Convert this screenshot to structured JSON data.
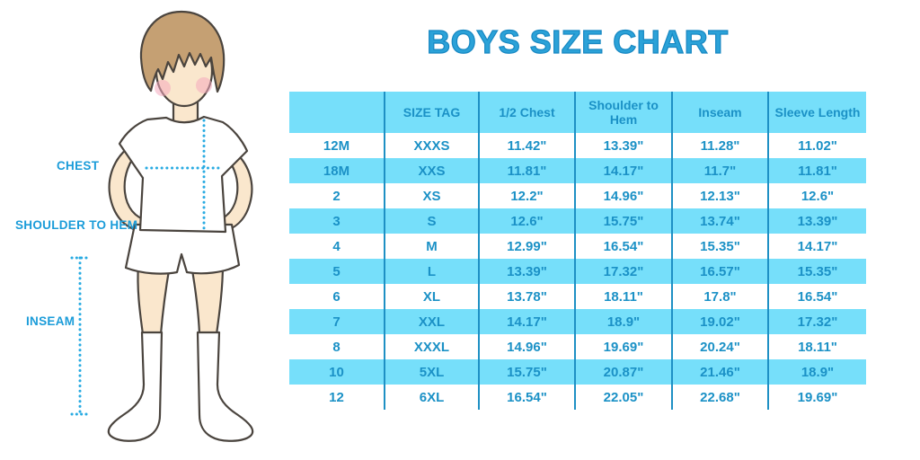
{
  "title": "BOYS SIZE CHART",
  "colors": {
    "title_blue": "#2BA2D8",
    "table_fill_blue": "#76DFFA",
    "table_text_blue": "#1B91C6",
    "separator_blue": "#1E90C4",
    "label_blue": "#1B9CD9",
    "dotted_line_blue": "#29ABE2",
    "hair_brown": "#C5A073",
    "skin": "#FAE7CD",
    "cheek_pink": "#F4A9BE"
  },
  "figure": {
    "chest_label": "CHEST",
    "shoulder_to_hem_label": "SHOULDER TO HEM",
    "inseam_label": "INSEAM"
  },
  "chart_data": {
    "type": "table",
    "title": "BOYS SIZE CHART",
    "columns": [
      "",
      "SIZE TAG",
      "1/2 Chest",
      "Shoulder to Hem",
      "Inseam",
      "Sleeve Length"
    ],
    "rows": [
      [
        "12M",
        "XXXS",
        "11.42\"",
        "13.39\"",
        "11.28\"",
        "11.02\""
      ],
      [
        "18M",
        "XXS",
        "11.81\"",
        "14.17\"",
        "11.7\"",
        "11.81\""
      ],
      [
        "2",
        "XS",
        "12.2\"",
        "14.96\"",
        "12.13\"",
        "12.6\""
      ],
      [
        "3",
        "S",
        "12.6\"",
        "15.75\"",
        "13.74\"",
        "13.39\""
      ],
      [
        "4",
        "M",
        "12.99\"",
        "16.54\"",
        "15.35\"",
        "14.17\""
      ],
      [
        "5",
        "L",
        "13.39\"",
        "17.32\"",
        "16.57\"",
        "15.35\""
      ],
      [
        "6",
        "XL",
        "13.78\"",
        "18.11\"",
        "17.8\"",
        "16.54\""
      ],
      [
        "7",
        "XXL",
        "14.17\"",
        "18.9\"",
        "19.02\"",
        "17.32\""
      ],
      [
        "8",
        "XXXL",
        "14.96\"",
        "19.69\"",
        "20.24\"",
        "18.11\""
      ],
      [
        "10",
        "5XL",
        "15.75\"",
        "20.87\"",
        "21.46\"",
        "18.9\""
      ],
      [
        "12",
        "6XL",
        "16.54\"",
        "22.05\"",
        "22.68\"",
        "19.69\""
      ]
    ]
  }
}
